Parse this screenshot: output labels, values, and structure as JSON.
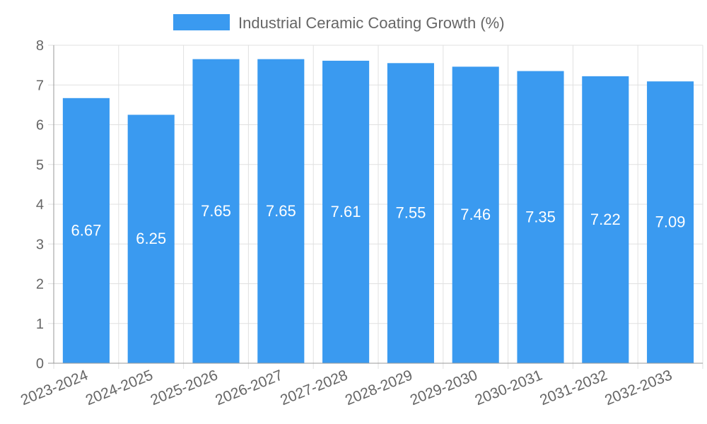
{
  "chart_data": {
    "type": "bar",
    "categories": [
      "2023-2024",
      "2024-2025",
      "2025-2026",
      "2026-2027",
      "2027-2028",
      "2028-2029",
      "2029-2030",
      "2030-2031",
      "2031-2032",
      "2032-2033"
    ],
    "series": [
      {
        "name": "Industrial Ceramic Coating Growth (%)",
        "values": [
          6.67,
          6.25,
          7.65,
          7.65,
          7.61,
          7.55,
          7.46,
          7.35,
          7.22,
          7.09
        ],
        "color": "#3a9af0"
      }
    ],
    "data_labels": [
      "6.67",
      "6.25",
      "7.65",
      "7.65",
      "7.61",
      "7.55",
      "7.46",
      "7.35",
      "7.22",
      "7.09"
    ],
    "ylim": [
      0,
      8
    ],
    "yticks": [
      0,
      1,
      2,
      3,
      4,
      5,
      6,
      7,
      8
    ],
    "grid": true,
    "legend_position": "top-center",
    "colors": {
      "bar": "#3a9af0",
      "grid": "#e0e0e0",
      "axis": "#999999",
      "text": "#666666",
      "label": "#ffffff"
    }
  }
}
